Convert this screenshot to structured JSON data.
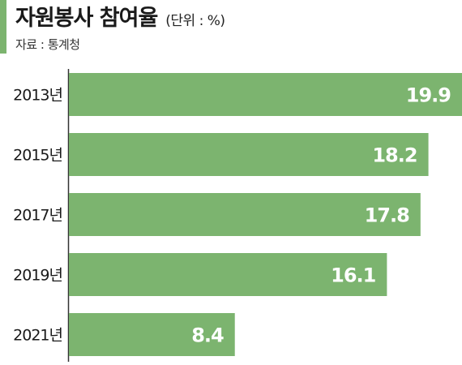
{
  "header": {
    "title": "자원봉사 참여율",
    "unit": "(단위 : %)",
    "source": "자료 : 통계청"
  },
  "colors": {
    "bar": "#7cb46f",
    "accent": "#7cb46f",
    "value_text": "#ffffff",
    "axis": "#333333"
  },
  "chart_data": {
    "type": "bar",
    "orientation": "horizontal",
    "title": "자원봉사 참여율",
    "unit": "(단위 : %)",
    "source": "자료 : 통계청",
    "categories": [
      "2013년",
      "2015년",
      "2017년",
      "2019년",
      "2021년"
    ],
    "values": [
      19.9,
      18.2,
      17.8,
      16.1,
      8.4
    ],
    "data_labels": [
      "19.9",
      "18.2",
      "17.8",
      "16.1",
      "8.4"
    ],
    "xlim": [
      0,
      19.9
    ],
    "grid": false,
    "legend": "none"
  }
}
